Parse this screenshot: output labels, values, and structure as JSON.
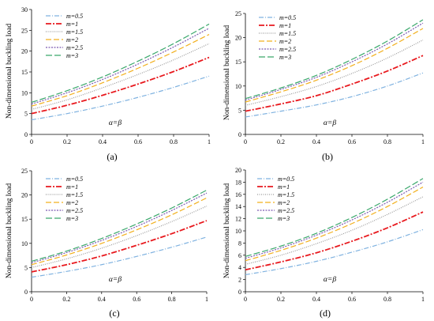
{
  "figure": {
    "panel_labels": [
      "(a)",
      "(b)",
      "(c)",
      "(d)"
    ]
  },
  "chart_data": [
    {
      "type": "line",
      "panel": "(a)",
      "xlabel": "α=β",
      "ylabel": "Non-dimensional buckling load",
      "xlim": [
        0,
        1
      ],
      "ylim": [
        0,
        30
      ],
      "xticks": [
        0,
        0.2,
        0.4,
        0.6,
        0.8,
        1
      ],
      "xtick_labels": [
        "0",
        "0.2",
        "0.4",
        "0.6",
        "0.8",
        "1"
      ],
      "yticks": [
        0,
        5,
        10,
        15,
        20,
        25,
        30
      ],
      "ytick_labels": [
        "0",
        "5",
        "10",
        "15",
        "20",
        "25",
        "30"
      ],
      "grid": false,
      "legend_position": "top-left",
      "x": [
        0,
        0.2,
        0.4,
        0.6,
        0.8,
        1
      ],
      "series": [
        {
          "name": "m=0.5",
          "values": [
            3.5,
            5.0,
            6.8,
            8.9,
            11.3,
            14.0
          ],
          "color": "#7fb2e0",
          "dash": "6,2,1,2"
        },
        {
          "name": "m=1",
          "values": [
            5.0,
            7.0,
            9.4,
            12.1,
            15.1,
            18.5
          ],
          "color": "#e8191e",
          "dash": "7,2,2,2"
        },
        {
          "name": "m=1.5",
          "values": [
            6.0,
            8.3,
            11.2,
            14.4,
            17.9,
            21.8
          ],
          "color": "#9a9a9a",
          "dash": "1,1.5"
        },
        {
          "name": "m=2",
          "values": [
            6.8,
            9.3,
            12.4,
            15.9,
            19.8,
            24.0
          ],
          "color": "#f2b01e",
          "dash": "7,3"
        },
        {
          "name": "m=2.5",
          "values": [
            7.3,
            10.0,
            13.2,
            16.9,
            21.0,
            25.5
          ],
          "color": "#7c5ab0",
          "dash": "2,1.5"
        },
        {
          "name": "m=3",
          "values": [
            7.7,
            10.5,
            13.8,
            17.6,
            21.8,
            26.5
          ],
          "color": "#3aa86b",
          "dash": "8,3"
        }
      ]
    },
    {
      "type": "line",
      "panel": "(b)",
      "xlabel": "α=β",
      "ylabel": "Non-dimensional buckling load",
      "xlim": [
        0,
        1
      ],
      "ylim": [
        0,
        25
      ],
      "xticks": [
        0,
        0.2,
        0.4,
        0.6,
        0.8,
        1
      ],
      "xtick_labels": [
        "0",
        "0.2",
        "0.4",
        "0.6",
        "0.8",
        "1"
      ],
      "yticks": [
        0,
        5,
        10,
        15,
        20,
        25
      ],
      "ytick_labels": [
        "0",
        "5",
        "10",
        "15",
        "20",
        "25"
      ],
      "grid": false,
      "legend_position": "top-left",
      "x": [
        0,
        0.2,
        0.4,
        0.6,
        0.8,
        1
      ],
      "series": [
        {
          "name": "m=0.5",
          "values": [
            3.6,
            4.8,
            6.1,
            7.8,
            10.0,
            12.7
          ],
          "color": "#7fb2e0",
          "dash": "6,2,1,2"
        },
        {
          "name": "m=1",
          "values": [
            4.8,
            6.3,
            8.0,
            10.4,
            13.1,
            16.3
          ],
          "color": "#e8191e",
          "dash": "7,2,2,2"
        },
        {
          "name": "m=1.5",
          "values": [
            6.0,
            7.8,
            9.9,
            12.6,
            15.8,
            19.5
          ],
          "color": "#9a9a9a",
          "dash": "1,1.5"
        },
        {
          "name": "m=2",
          "values": [
            6.7,
            8.8,
            11.2,
            14.2,
            17.8,
            21.9
          ],
          "color": "#f2b01e",
          "dash": "7,3"
        },
        {
          "name": "m=2.5",
          "values": [
            7.1,
            9.3,
            11.8,
            15.0,
            18.7,
            23.0
          ],
          "color": "#7c5ab0",
          "dash": "2,1.5"
        },
        {
          "name": "m=3",
          "values": [
            7.4,
            9.6,
            12.2,
            15.5,
            19.3,
            23.7
          ],
          "color": "#3aa86b",
          "dash": "8,3"
        }
      ]
    },
    {
      "type": "line",
      "panel": "(c)",
      "xlabel": "α=β",
      "ylabel": "Non-dimensional buckling load",
      "xlim": [
        0,
        1
      ],
      "ylim": [
        0,
        25
      ],
      "xticks": [
        0,
        0.2,
        0.4,
        0.6,
        0.8,
        1
      ],
      "xtick_labels": [
        "0",
        "0.2",
        "0.4",
        "0.6",
        "0.8",
        "1"
      ],
      "yticks": [
        0,
        5,
        10,
        15,
        20,
        25
      ],
      "ytick_labels": [
        "0",
        "5",
        "10",
        "15",
        "20",
        "25"
      ],
      "grid": false,
      "legend_position": "top-left",
      "x": [
        0,
        0.2,
        0.4,
        0.6,
        0.8,
        1
      ],
      "series": [
        {
          "name": "m=0.5",
          "values": [
            3.0,
            4.2,
            5.6,
            7.3,
            9.2,
            11.3
          ],
          "color": "#7fb2e0",
          "dash": "6,2,1,2"
        },
        {
          "name": "m=1",
          "values": [
            4.1,
            5.6,
            7.4,
            9.6,
            12.0,
            14.7
          ],
          "color": "#e8191e",
          "dash": "7,2,2,2"
        },
        {
          "name": "m=1.5",
          "values": [
            5.0,
            6.8,
            9.0,
            11.6,
            14.5,
            17.7
          ],
          "color": "#9a9a9a",
          "dash": "1,1.5"
        },
        {
          "name": "m=2",
          "values": [
            5.6,
            7.6,
            10.0,
            12.8,
            15.9,
            19.4
          ],
          "color": "#f2b01e",
          "dash": "7,3"
        },
        {
          "name": "m=2.5",
          "values": [
            6.0,
            8.1,
            10.6,
            13.5,
            16.8,
            20.4
          ],
          "color": "#7c5ab0",
          "dash": "2,1.5"
        },
        {
          "name": "m=3",
          "values": [
            6.3,
            8.4,
            11.0,
            14.0,
            17.3,
            21.0
          ],
          "color": "#3aa86b",
          "dash": "8,3"
        }
      ]
    },
    {
      "type": "line",
      "panel": "(d)",
      "xlabel": "α=β",
      "ylabel": "Non-dimensional buckling load",
      "xlim": [
        0,
        1
      ],
      "ylim": [
        0,
        20
      ],
      "xticks": [
        0,
        0.2,
        0.4,
        0.6,
        0.8,
        1
      ],
      "xtick_labels": [
        "0",
        "0.2",
        "0.4",
        "0.6",
        "0.8",
        "1"
      ],
      "yticks": [
        0,
        2,
        4,
        6,
        8,
        10,
        12,
        14,
        16,
        18,
        20
      ],
      "ytick_labels": [
        "0",
        "2",
        "4",
        "6",
        "8",
        "10",
        "12",
        "14",
        "16",
        "18",
        "20"
      ],
      "grid": false,
      "legend_position": "top-left",
      "x": [
        0,
        0.2,
        0.4,
        0.6,
        0.8,
        1
      ],
      "series": [
        {
          "name": "m=0.5",
          "values": [
            2.8,
            3.8,
            5.0,
            6.5,
            8.2,
            10.2
          ],
          "color": "#7fb2e0",
          "dash": "6,2,1,2"
        },
        {
          "name": "m=1",
          "values": [
            3.6,
            4.9,
            6.4,
            8.3,
            10.5,
            13.1
          ],
          "color": "#e8191e",
          "dash": "7,2,2,2"
        },
        {
          "name": "m=1.5",
          "values": [
            4.5,
            6.0,
            7.9,
            10.1,
            12.7,
            15.6
          ],
          "color": "#9a9a9a",
          "dash": "1,1.5"
        },
        {
          "name": "m=2",
          "values": [
            5.1,
            6.8,
            8.8,
            11.2,
            14.0,
            17.2
          ],
          "color": "#f2b01e",
          "dash": "7,3"
        },
        {
          "name": "m=2.5",
          "values": [
            5.5,
            7.2,
            9.3,
            11.8,
            14.7,
            18.0
          ],
          "color": "#7c5ab0",
          "dash": "2,1.5"
        },
        {
          "name": "m=3",
          "values": [
            5.8,
            7.5,
            9.6,
            12.2,
            15.2,
            18.6
          ],
          "color": "#3aa86b",
          "dash": "8,3"
        }
      ]
    }
  ]
}
